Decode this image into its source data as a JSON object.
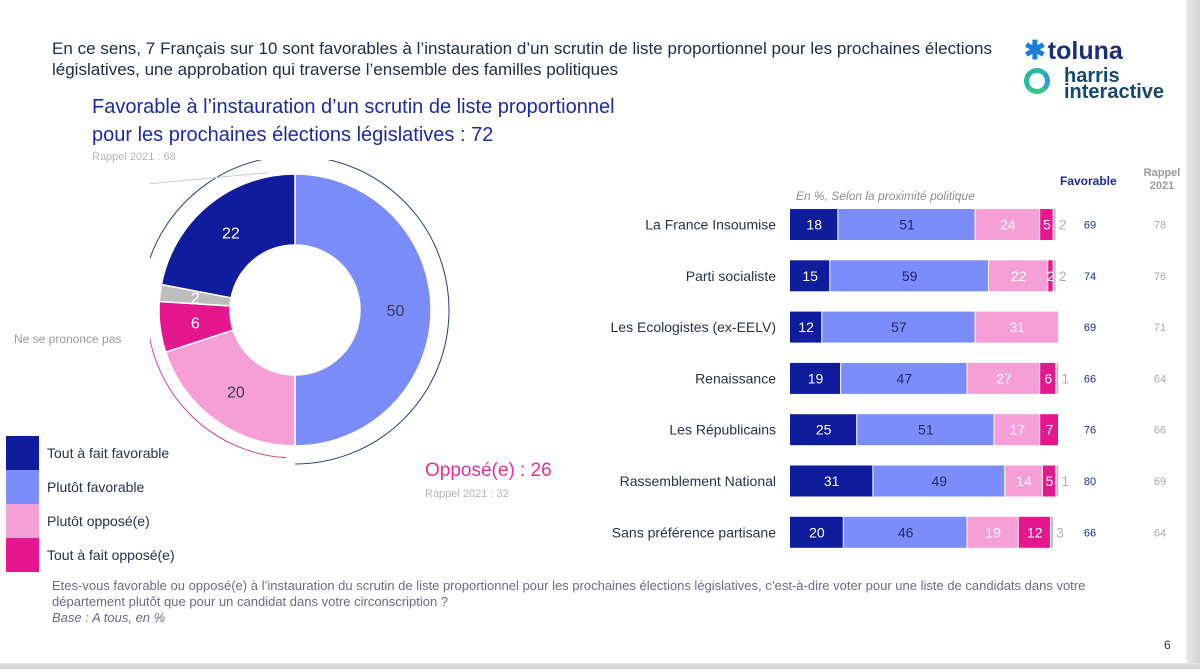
{
  "headline": "En ce sens, 7 Français sur 10 sont favorables à l’instauration d’un scrutin de liste proportionnel pour les prochaines élections législatives, une approbation qui traverse l’ensemble des familles politiques",
  "logo": {
    "toluna": "toluna",
    "toluna_star": "✱",
    "harris_line1": "harris",
    "harris_line2": "interactive"
  },
  "favorable_title_line1": "Favorable à l’instauration d’un scrutin de liste proportionnel",
  "favorable_title_line2": "pour les prochaines élections législatives : 72",
  "favorable_rappel": "Rappel 2021 : 68",
  "oppose_title": "Opposé(e) : 26",
  "oppose_rappel": "Rappel 2021 : 32",
  "nsp_label": "Ne se prononce pas",
  "legend": [
    {
      "label": "Tout à fait favorable",
      "color": "#0f1c9c"
    },
    {
      "label": "Plutôt favorable",
      "color": "#7b8cfb"
    },
    {
      "label": "Plutôt opposé(e)",
      "color": "#f59fd6"
    },
    {
      "label": "Tout à fait opposé(e)",
      "color": "#e5178e"
    }
  ],
  "bars_header": {
    "note": "En %, Selon la proximité politique",
    "favorable": "Favorable",
    "rappel_line1": "Rappel",
    "rappel_line2": "2021"
  },
  "chart_data": [
    {
      "type": "pie",
      "style": "donut",
      "slices": [
        {
          "label": "Tout à fait favorable",
          "value": 22,
          "color": "#0f1c9c"
        },
        {
          "label": "Plutôt favorable",
          "value": 50,
          "color": "#7b8cfb"
        },
        {
          "label": "Plutôt opposé(e)",
          "value": 20,
          "color": "#f59fd6"
        },
        {
          "label": "Tout à fait opposé(e)",
          "value": 6,
          "color": "#e5178e"
        },
        {
          "label": "Ne se prononce pas",
          "value": 2,
          "color": "#bdbdbd"
        }
      ]
    },
    {
      "type": "bar",
      "orientation": "horizontal",
      "stacked": true,
      "categories": [
        "La France Insoumise",
        "Parti socialiste",
        "Les Ecologistes (ex-EELV)",
        "Renaissance",
        "Les Républicains",
        "Rassemblement National",
        "Sans préférence partisane"
      ],
      "series": [
        {
          "name": "Tout à fait favorable",
          "color": "#0f1c9c",
          "values": [
            18,
            15,
            12,
            19,
            25,
            31,
            20
          ]
        },
        {
          "name": "Plutôt favorable",
          "color": "#7b8cfb",
          "values": [
            51,
            59,
            57,
            47,
            51,
            49,
            46
          ]
        },
        {
          "name": "Plutôt opposé(e)",
          "color": "#f59fd6",
          "values": [
            24,
            22,
            31,
            27,
            17,
            14,
            19
          ]
        },
        {
          "name": "Tout à fait opposé(e)",
          "color": "#e5178e",
          "values": [
            5,
            2,
            null,
            6,
            7,
            5,
            12
          ]
        },
        {
          "name": "Ne se prononce pas",
          "color": "#bdbdbd",
          "values": [
            2,
            2,
            null,
            1,
            null,
            1,
            3
          ]
        }
      ],
      "favorable": [
        69,
        74,
        69,
        66,
        76,
        80,
        66
      ],
      "rappel_2021": [
        78,
        76,
        71,
        64,
        66,
        69,
        64
      ],
      "xlim": [
        0,
        100
      ]
    }
  ],
  "footer_question": "Etes-vous favorable ou opposé(e) à l’instauration du scrutin de liste proportionnel pour les prochaines élections législatives, c’est-à-dire voter pour une liste de candidats dans votre département plutôt que pour un candidat dans votre circonscription ?",
  "footer_base": "Base : A tous, en %",
  "page_number": "6"
}
